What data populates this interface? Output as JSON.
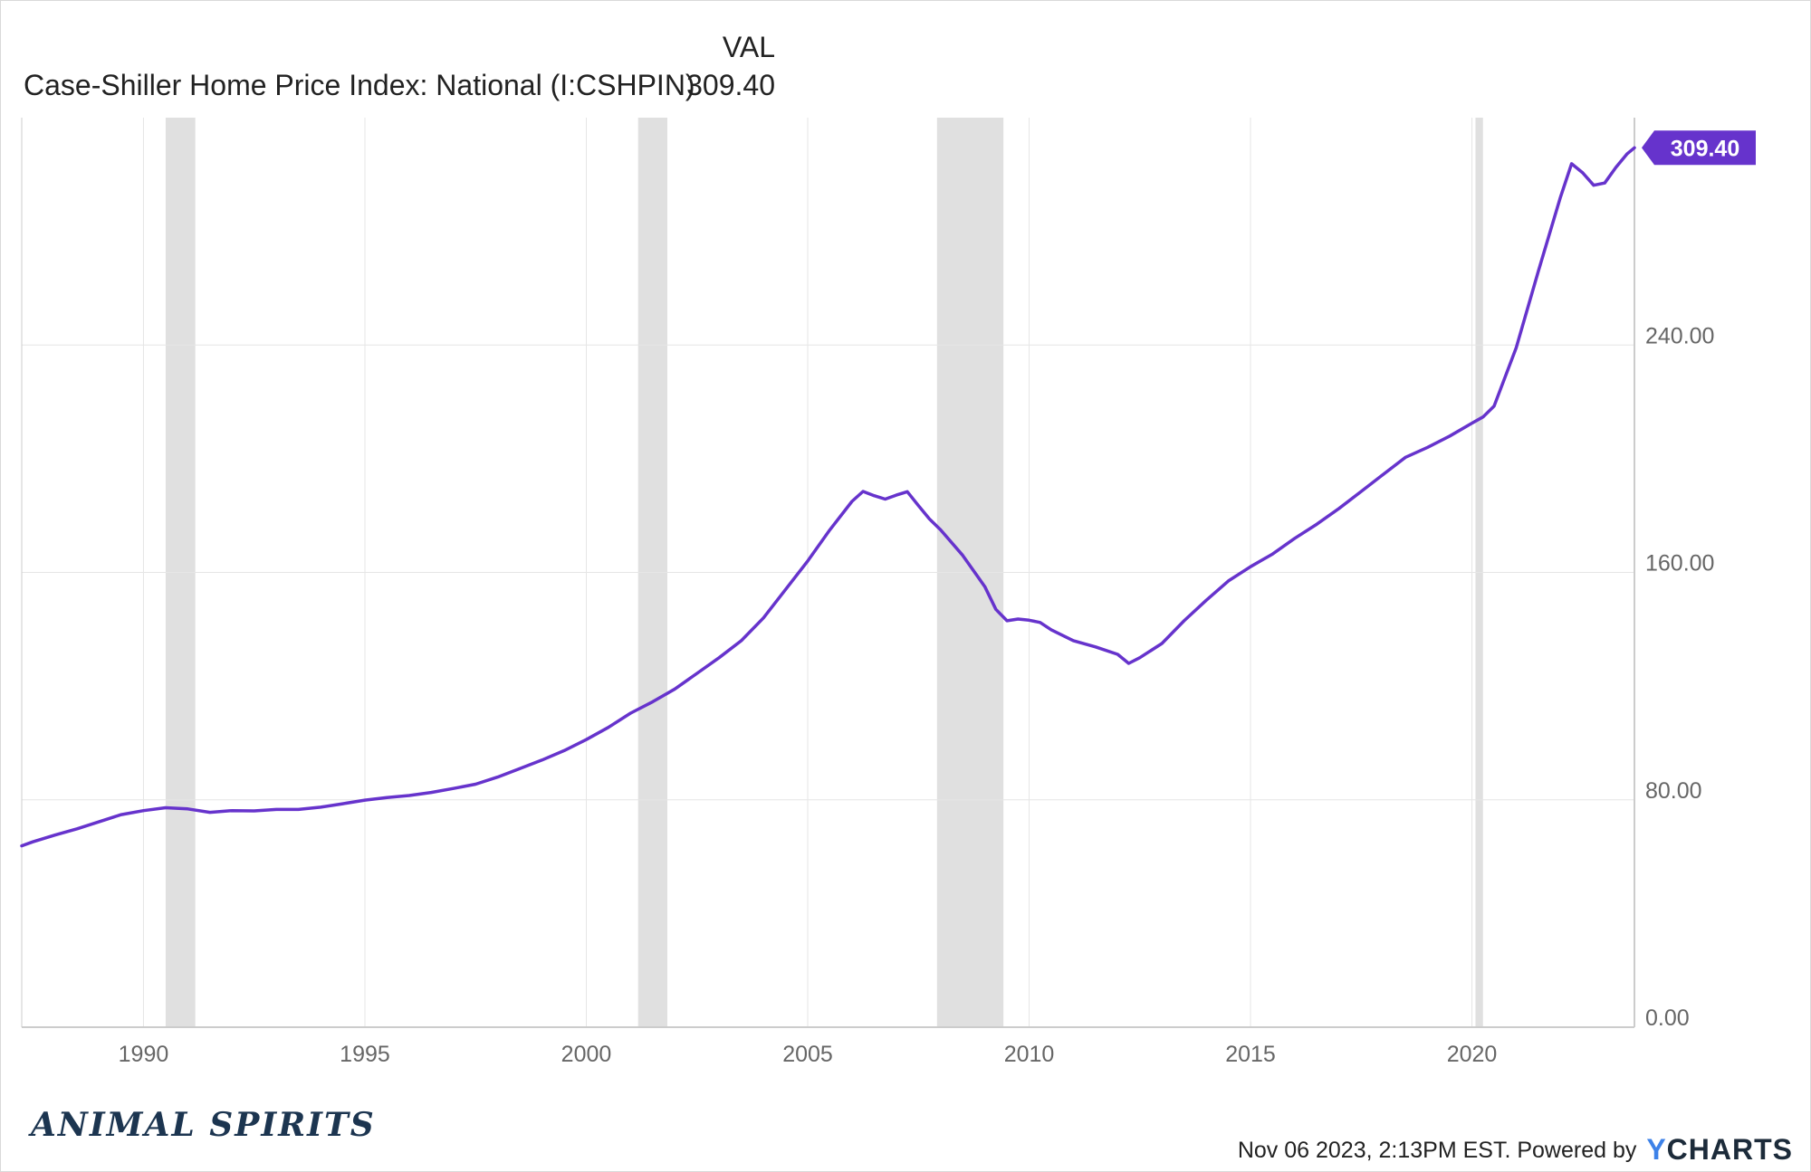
{
  "legend": {
    "column_header": "VAL",
    "series_name": "Case-Shiller Home Price Index: National (I:CSHPIN)",
    "series_value": "309.40"
  },
  "footer": {
    "brand_logo": "ANIMAL SPIRITS",
    "timestamp_text": "Nov 06 2023, 2:13PM EST.",
    "powered_by": "Powered by",
    "brand_y": "Y",
    "brand_rest": "CHARTS"
  },
  "colors": {
    "line": "#6633cc",
    "recession": "#e0e0e0",
    "grid": "#e6e6e6",
    "axis": "#cccccc",
    "tick_text": "#666666",
    "label_bg": "#6633cc",
    "label_text": "#ffffff"
  },
  "chart_data": {
    "type": "line",
    "title": "",
    "xlabel": "",
    "ylabel": "",
    "xlim": [
      1987.25,
      2023.67
    ],
    "ylim": [
      0,
      320
    ],
    "x_ticks": [
      "1990",
      "1995",
      "2000",
      "2005",
      "2010",
      "2015",
      "2020"
    ],
    "y_ticks": [
      "0.00",
      "80.00",
      "160.00",
      "240.00"
    ],
    "y_axis_side": "right",
    "grid": true,
    "last_value_label": "309.40",
    "recession_bands": [
      [
        1990.5,
        1991.17
      ],
      [
        2001.17,
        2001.83
      ],
      [
        2007.92,
        2009.42
      ],
      [
        2020.08,
        2020.25
      ]
    ],
    "series": [
      {
        "name": "Case-Shiller Home Price Index: National (I:CSHPIN)",
        "points": [
          [
            1987.25,
            63.8
          ],
          [
            1987.5,
            65.2
          ],
          [
            1988.0,
            67.6
          ],
          [
            1988.5,
            69.8
          ],
          [
            1989.0,
            72.3
          ],
          [
            1989.5,
            74.8
          ],
          [
            1990.0,
            76.2
          ],
          [
            1990.5,
            77.2
          ],
          [
            1991.0,
            76.8
          ],
          [
            1991.5,
            75.6
          ],
          [
            1992.0,
            76.2
          ],
          [
            1992.5,
            76.1
          ],
          [
            1993.0,
            76.6
          ],
          [
            1993.5,
            76.6
          ],
          [
            1994.0,
            77.4
          ],
          [
            1994.5,
            78.6
          ],
          [
            1995.0,
            79.9
          ],
          [
            1995.5,
            80.8
          ],
          [
            1996.0,
            81.5
          ],
          [
            1996.5,
            82.6
          ],
          [
            1997.0,
            84.0
          ],
          [
            1997.5,
            85.5
          ],
          [
            1998.0,
            88.0
          ],
          [
            1998.5,
            91.0
          ],
          [
            1999.0,
            94.0
          ],
          [
            1999.5,
            97.3
          ],
          [
            2000.0,
            101.2
          ],
          [
            2000.5,
            105.5
          ],
          [
            2001.0,
            110.5
          ],
          [
            2001.5,
            114.5
          ],
          [
            2002.0,
            119.0
          ],
          [
            2002.5,
            124.5
          ],
          [
            2003.0,
            130.0
          ],
          [
            2003.5,
            136.0
          ],
          [
            2004.0,
            144.0
          ],
          [
            2004.5,
            154.0
          ],
          [
            2005.0,
            164.0
          ],
          [
            2005.5,
            175.0
          ],
          [
            2006.0,
            185.0
          ],
          [
            2006.25,
            188.5
          ],
          [
            2006.5,
            187.0
          ],
          [
            2006.75,
            185.8
          ],
          [
            2007.0,
            187.2
          ],
          [
            2007.25,
            188.4
          ],
          [
            2007.5,
            183.5
          ],
          [
            2007.75,
            178.8
          ],
          [
            2008.0,
            175.0
          ],
          [
            2008.5,
            166.0
          ],
          [
            2009.0,
            155.0
          ],
          [
            2009.25,
            147.0
          ],
          [
            2009.5,
            143.0
          ],
          [
            2009.75,
            143.6
          ],
          [
            2010.0,
            143.2
          ],
          [
            2010.25,
            142.4
          ],
          [
            2010.5,
            139.8
          ],
          [
            2011.0,
            136.0
          ],
          [
            2011.5,
            133.8
          ],
          [
            2012.0,
            131.2
          ],
          [
            2012.25,
            128.0
          ],
          [
            2012.5,
            130.0
          ],
          [
            2013.0,
            135.0
          ],
          [
            2013.5,
            143.0
          ],
          [
            2014.0,
            150.2
          ],
          [
            2014.5,
            157.0
          ],
          [
            2015.0,
            162.0
          ],
          [
            2015.5,
            166.5
          ],
          [
            2016.0,
            172.0
          ],
          [
            2016.5,
            177.0
          ],
          [
            2017.0,
            182.5
          ],
          [
            2017.5,
            188.5
          ],
          [
            2018.0,
            194.5
          ],
          [
            2018.5,
            200.5
          ],
          [
            2019.0,
            204.0
          ],
          [
            2019.5,
            208.0
          ],
          [
            2020.0,
            212.5
          ],
          [
            2020.25,
            214.7
          ],
          [
            2020.5,
            218.5
          ],
          [
            2021.0,
            239.0
          ],
          [
            2021.5,
            266.0
          ],
          [
            2022.0,
            292.0
          ],
          [
            2022.25,
            303.8
          ],
          [
            2022.5,
            300.6
          ],
          [
            2022.75,
            296.2
          ],
          [
            2023.0,
            297.0
          ],
          [
            2023.25,
            302.5
          ],
          [
            2023.5,
            307.2
          ],
          [
            2023.67,
            309.4
          ]
        ]
      }
    ]
  }
}
